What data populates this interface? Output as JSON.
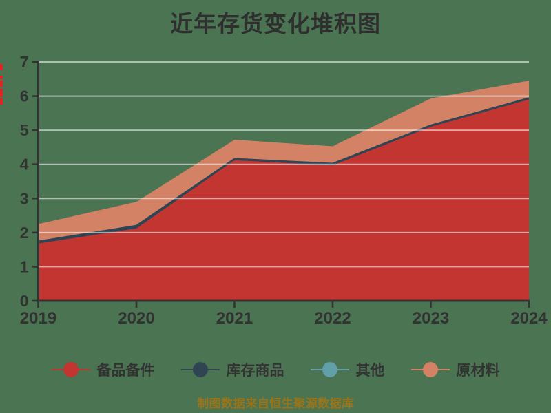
{
  "page": {
    "title": "近年存货变化堆积图",
    "source_note": "制图数据来自恒生聚源数据库"
  },
  "colors": {
    "background": "#4b7453",
    "title_text": "#2f2f2f",
    "axis": "#333333",
    "tick_label": "#333333",
    "gridline": "rgba(255,255,255,0.55)",
    "legend_text": "#333333",
    "source_note_text": "#9c7417",
    "clipped_axis_label_fragments": "#e32222"
  },
  "chart_data": {
    "type": "area",
    "stacked": true,
    "title": "近年存货变化堆积图",
    "categories": [
      "2019",
      "2020",
      "2021",
      "2022",
      "2023",
      "2024"
    ],
    "series": [
      {
        "name": "备品备件",
        "color": "#c23531",
        "values": [
          1.68,
          2.12,
          4.12,
          3.97,
          5.1,
          5.9
        ]
      },
      {
        "name": "库存商品",
        "color": "#2f4554",
        "values": [
          0.06,
          0.08,
          0.04,
          0.05,
          0.04,
          0.04
        ]
      },
      {
        "name": "其他",
        "color": "#61a0a8",
        "values": [
          0.0,
          0.0,
          0.0,
          0.0,
          0.0,
          0.0
        ]
      },
      {
        "name": "原材料",
        "color": "#d48265",
        "values": [
          0.51,
          0.7,
          0.56,
          0.51,
          0.79,
          0.51
        ]
      }
    ],
    "stack_totals": [
      2.25,
      2.9,
      4.72,
      4.53,
      5.93,
      6.45
    ],
    "xlabel": "",
    "ylabel": "",
    "ylim": [
      0,
      7
    ],
    "yticks": [
      0,
      1,
      2,
      3,
      4,
      5,
      6,
      7
    ],
    "grid": true,
    "legend_position": "bottom"
  }
}
